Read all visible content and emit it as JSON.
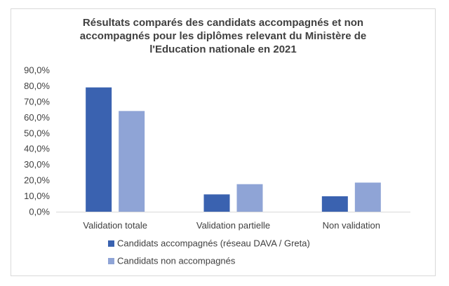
{
  "chart_data": {
    "type": "bar",
    "title_lines": [
      "Résultats comparés des candidats accompagnés et non",
      "accompagnés pour les diplômes relevant du Ministère de",
      "l'Education nationale en 2021"
    ],
    "categories": [
      "Validation totale",
      "Validation partielle",
      "Non validation"
    ],
    "series": [
      {
        "name": "Candidats accompagnés (réseau DAVA / Greta)",
        "color": "#3a62b0",
        "values": [
          79.0,
          11.0,
          9.8
        ]
      },
      {
        "name": "Candidats non accompagnés",
        "color": "#8fa4d6",
        "values": [
          64.0,
          17.5,
          18.5
        ]
      }
    ],
    "ylim": [
      0,
      90
    ],
    "yticks": [
      "0,0%",
      "10,0%",
      "20,0%",
      "30,0%",
      "40,0%",
      "50,0%",
      "60,0%",
      "70,0%",
      "80,0%",
      "90,0%"
    ],
    "xlabel": "",
    "ylabel": "",
    "grid": false,
    "legend_position": "bottom"
  }
}
